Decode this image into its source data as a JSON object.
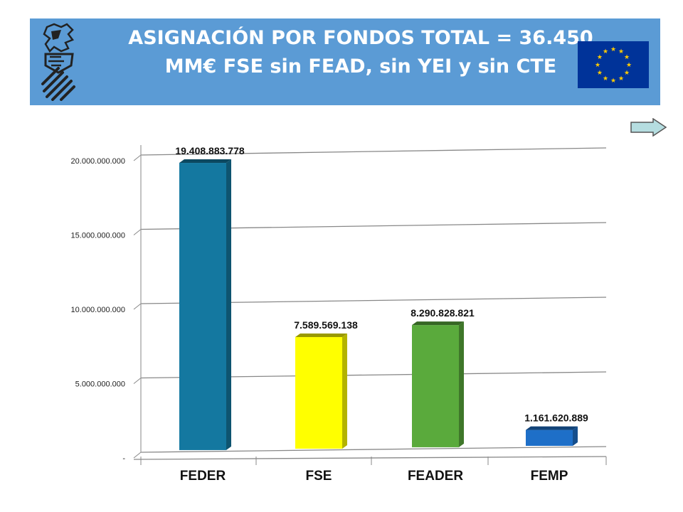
{
  "header": {
    "title_line1": "ASIGNACIÓN POR FONDOS TOTAL = 36.450",
    "title_line2": "MM€ FSE sin FEAD, sin YEI y sin CTE",
    "background_color": "#5b9bd5"
  },
  "icons": {
    "crest": "valencian-crest-icon",
    "flag": "eu-flag-icon",
    "arrow": "right-arrow-icon"
  },
  "chart_data": {
    "type": "bar",
    "categories": [
      "FEDER",
      "FSE",
      "FEADER",
      "FEMP"
    ],
    "values": [
      19408883778,
      7589569138,
      8290828821,
      1161620889
    ],
    "value_labels": [
      "19.408.883.778",
      "7.589.569.138",
      "8.290.828.821",
      "1.161.620.889"
    ],
    "colors": [
      "#1478a0",
      "#ffff00",
      "#5aaa3c",
      "#1e6fc8"
    ],
    "ylim": [
      0,
      20000000000
    ],
    "yticks": [
      {
        "value": 0,
        "label": "-"
      },
      {
        "value": 5000000000,
        "label": "5.000.000.000"
      },
      {
        "value": 10000000000,
        "label": "10.000.000.000"
      },
      {
        "value": 15000000000,
        "label": "15.000.000.000"
      },
      {
        "value": 20000000000,
        "label": "20.000.000.000"
      }
    ],
    "grid": true
  }
}
